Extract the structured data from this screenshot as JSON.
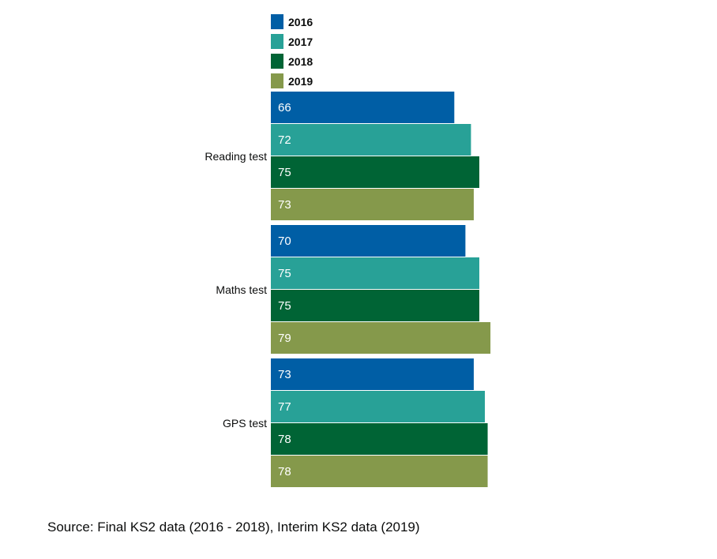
{
  "chart_data": {
    "type": "bar",
    "orientation": "horizontal",
    "categories": [
      "Reading test",
      "Maths test",
      "GPS test"
    ],
    "series": [
      {
        "name": "2016",
        "color": "#005ea5",
        "values": [
          66,
          70,
          73
        ]
      },
      {
        "name": "2017",
        "color": "#28a197",
        "values": [
          72,
          75,
          77
        ]
      },
      {
        "name": "2018",
        "color": "#006435",
        "values": [
          75,
          75,
          78
        ]
      },
      {
        "name": "2019",
        "color": "#85994b",
        "values": [
          73,
          79,
          78
        ]
      }
    ],
    "xlim": [
      0,
      79
    ],
    "grid": false,
    "legend": "top-left",
    "data_labels": true
  },
  "source": "Source: Final KS2 data (2016 - 2018), Interim KS2 data (2019)"
}
